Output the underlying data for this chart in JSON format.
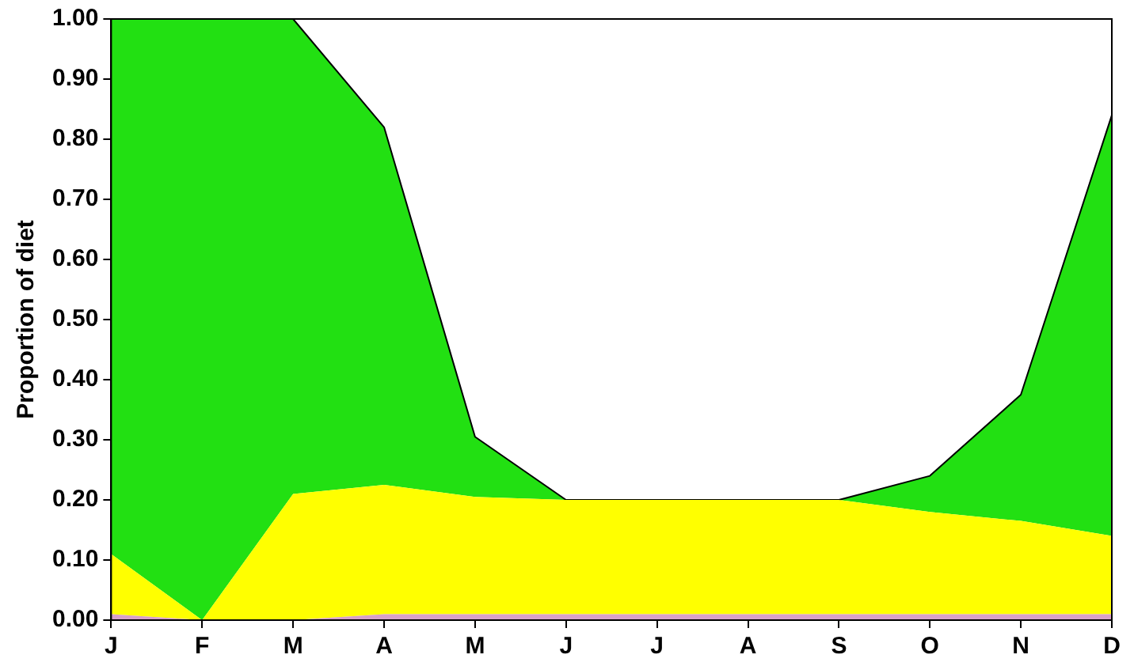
{
  "chart_data": {
    "type": "area",
    "ylabel": "Proportion of diet",
    "stacked": true,
    "categories": [
      "J",
      "F",
      "M",
      "A",
      "M",
      "J",
      "J",
      "A",
      "S",
      "O",
      "N",
      "D"
    ],
    "series": [
      {
        "color": "#d8a0c8",
        "values": [
          0.01,
          0,
          0,
          0.01,
          0.01,
          0.01,
          0.01,
          0.01,
          0.01,
          0.01,
          0.01,
          0.01
        ]
      },
      {
        "color": "#ffff00",
        "values": [
          0.1,
          0,
          0.21,
          0.215,
          0.195,
          0.19,
          0.19,
          0.19,
          0.19,
          0.17,
          0.155,
          0.13
        ]
      },
      {
        "color": "#22e012",
        "values": [
          0.89,
          1.0,
          0.79,
          0.595,
          0.1,
          0,
          0,
          0,
          0,
          0.06,
          0.21,
          0.7
        ]
      }
    ],
    "ylim": [
      0,
      1
    ],
    "yticks": [
      {
        "value": 0,
        "label": "0.00"
      },
      {
        "value": 0.1,
        "label": "0.10"
      },
      {
        "value": 0.2,
        "label": "0.20"
      },
      {
        "value": 0.3,
        "label": "0.30"
      },
      {
        "value": 0.4,
        "label": "0.40"
      },
      {
        "value": 0.5,
        "label": "0.50"
      },
      {
        "value": 0.6,
        "label": "0.60"
      },
      {
        "value": 0.7,
        "label": "0.70"
      },
      {
        "value": 0.8,
        "label": "0.80"
      },
      {
        "value": 0.9,
        "label": "0.90"
      },
      {
        "value": 1,
        "label": "1.00"
      }
    ],
    "grid": false,
    "legend": false
  }
}
